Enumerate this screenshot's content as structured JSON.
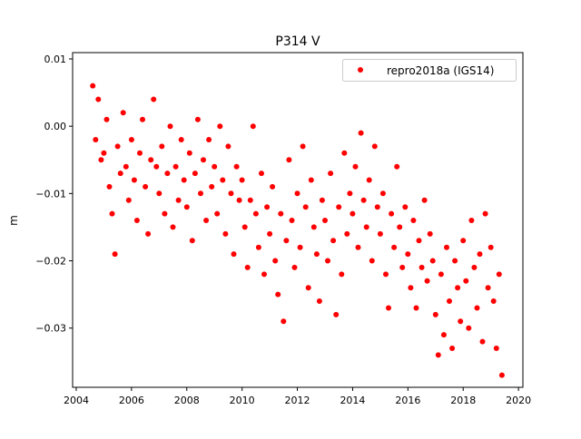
{
  "chart_data": {
    "type": "scatter",
    "title": "P314 V",
    "xlabel": "",
    "ylabel": "m",
    "xlim": [
      2003.87,
      2020.16
    ],
    "ylim": [
      -0.0388,
      0.01094
    ],
    "xticks": [
      2004,
      2006,
      2008,
      2010,
      2012,
      2014,
      2016,
      2018,
      2020
    ],
    "xtick_labels": [
      "2004",
      "2006",
      "2008",
      "2010",
      "2012",
      "2014",
      "2016",
      "2018",
      "2020"
    ],
    "yticks": [
      0.01,
      0.0,
      -0.01,
      -0.02,
      -0.03
    ],
    "ytick_labels": [
      "0.01",
      "0.00",
      "−0.01",
      "−0.02",
      "−0.03"
    ],
    "grid": false,
    "legend": {
      "placement": "top-right",
      "entries": [
        "repro2018a (IGS14)"
      ]
    },
    "series": [
      {
        "name": "repro2018a (IGS14)",
        "color": "#ff0000",
        "x_start": 2004.6,
        "x_step": 0.1,
        "y": [
          0.006,
          -0.002,
          0.004,
          -0.005,
          -0.004,
          0.001,
          -0.009,
          -0.013,
          -0.019,
          -0.003,
          -0.007,
          0.002,
          -0.006,
          -0.011,
          -0.002,
          -0.008,
          -0.014,
          -0.004,
          0.001,
          -0.009,
          -0.016,
          -0.005,
          0.004,
          -0.006,
          -0.01,
          -0.003,
          -0.013,
          -0.007,
          0.0,
          -0.015,
          -0.006,
          -0.011,
          -0.002,
          -0.008,
          -0.012,
          -0.004,
          -0.017,
          -0.007,
          0.001,
          -0.01,
          -0.005,
          -0.014,
          -0.002,
          -0.009,
          -0.006,
          -0.013,
          0.0,
          -0.008,
          -0.016,
          -0.003,
          -0.01,
          -0.019,
          -0.006,
          -0.011,
          -0.008,
          -0.015,
          -0.021,
          -0.011,
          0.0,
          -0.013,
          -0.018,
          -0.007,
          -0.022,
          -0.012,
          -0.016,
          -0.009,
          -0.02,
          -0.025,
          -0.013,
          -0.029,
          -0.017,
          -0.005,
          -0.014,
          -0.021,
          -0.01,
          -0.018,
          -0.003,
          -0.012,
          -0.024,
          -0.008,
          -0.015,
          -0.019,
          -0.026,
          -0.011,
          -0.014,
          -0.02,
          -0.007,
          -0.017,
          -0.028,
          -0.012,
          -0.022,
          -0.004,
          -0.016,
          -0.01,
          -0.013,
          -0.006,
          -0.018,
          -0.001,
          -0.011,
          -0.015,
          -0.008,
          -0.02,
          -0.003,
          -0.012,
          -0.016,
          -0.01,
          -0.022,
          -0.027,
          -0.013,
          -0.018,
          -0.006,
          -0.015,
          -0.021,
          -0.012,
          -0.019,
          -0.024,
          -0.014,
          -0.027,
          -0.017,
          -0.021,
          -0.011,
          -0.023,
          -0.016,
          -0.02,
          -0.028,
          -0.034,
          -0.022,
          -0.031,
          -0.018,
          -0.026,
          -0.033,
          -0.02,
          -0.024,
          -0.029,
          -0.017,
          -0.023,
          -0.03,
          -0.014,
          -0.021,
          -0.027,
          -0.019,
          -0.032,
          -0.013,
          -0.024,
          -0.018,
          -0.026,
          -0.033,
          -0.022,
          -0.037
        ]
      }
    ]
  }
}
